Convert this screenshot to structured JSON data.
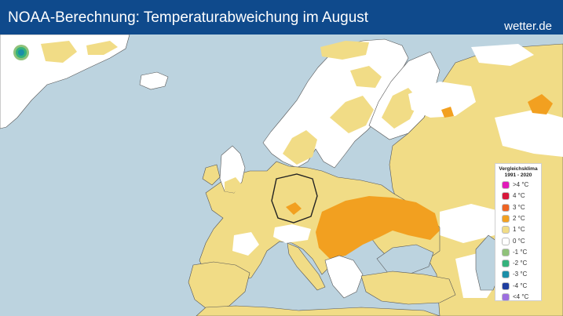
{
  "header": {
    "title": "NOAA-Berechnung: Temperaturabweichung im August",
    "brand": "wetter.de"
  },
  "legend": {
    "title_line1": "Vergleichsklima",
    "title_line2": "1991 - 2020",
    "items": [
      {
        "label": ">4 °C",
        "color": "#e21ab9"
      },
      {
        "label": "4 °C",
        "color": "#d8173a"
      },
      {
        "label": "3 °C",
        "color": "#ee6424"
      },
      {
        "label": "2 °C",
        "color": "#f2a020"
      },
      {
        "label": "1 °C",
        "color": "#f1dc86"
      },
      {
        "label": "0 °C",
        "color": "#ffffff"
      },
      {
        "label": "-1 °C",
        "color": "#90c27a"
      },
      {
        "label": "-2 °C",
        "color": "#34b27c"
      },
      {
        "label": "-3 °C",
        "color": "#1b8ea8"
      },
      {
        "label": "-4 °C",
        "color": "#1f3ea0"
      },
      {
        "label": "<4 °C",
        "color": "#9d6fe0"
      }
    ]
  },
  "colors": {
    "sea": "#bcd3df",
    "land_neutral": "#ffffff",
    "anomaly_plus1": "#f1dc86",
    "anomaly_plus2": "#f2a020",
    "header": "#0f4a8c"
  }
}
